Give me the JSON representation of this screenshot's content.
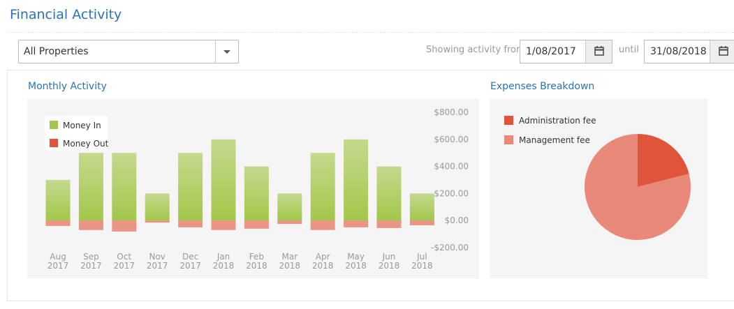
{
  "header": {
    "title": "Financial Activity"
  },
  "filters": {
    "property": "All Properties",
    "from_label": "Showing activity from",
    "from_date": "1/08/2017",
    "until_label": "until",
    "until_date": "31/08/2018"
  },
  "chart_data": [
    {
      "type": "bar",
      "title": "Monthly Activity",
      "categories": [
        "Aug 2017",
        "Sep 2017",
        "Oct 2017",
        "Nov 2017",
        "Dec 2017",
        "Jan 2018",
        "Feb 2018",
        "Mar 2018",
        "Apr 2018",
        "May 2018",
        "Jun 2018",
        "Jul 2018"
      ],
      "series": [
        {
          "name": "Money In",
          "color": "#a3c74a",
          "values": [
            300,
            500,
            500,
            200,
            500,
            600,
            400,
            200,
            500,
            600,
            400,
            200
          ]
        },
        {
          "name": "Money Out",
          "color": "#e3533c",
          "values": [
            -40,
            -70,
            -80,
            -15,
            -50,
            -70,
            -60,
            -25,
            -70,
            -50,
            -55,
            -35
          ]
        }
      ],
      "ylim": [
        -200,
        800
      ],
      "yticks": [
        {
          "value": -200,
          "label": "-$200.00"
        },
        {
          "value": 0,
          "label": "$0.00"
        },
        {
          "value": 200,
          "label": "$200.00"
        },
        {
          "value": 400,
          "label": "$400.00"
        },
        {
          "value": 600,
          "label": "$600.00"
        },
        {
          "value": 800,
          "label": "$800.00"
        }
      ]
    },
    {
      "type": "pie",
      "title": "Expenses Breakdown",
      "categories": [
        "Administration fee",
        "Management fee"
      ],
      "values": [
        21,
        79
      ],
      "colors": [
        "#e0553a",
        "#e8897a"
      ]
    }
  ]
}
